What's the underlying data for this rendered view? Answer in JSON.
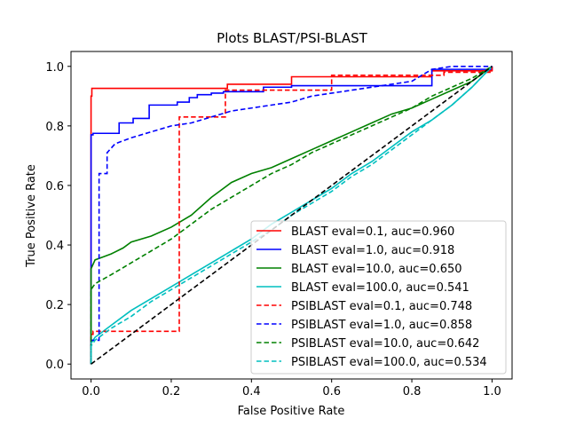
{
  "chart_data": {
    "type": "line",
    "title": "Plots BLAST/PSI-BLAST",
    "xlabel": "False Positive Rate",
    "ylabel": "True Positive Rate",
    "xlim": [
      -0.05,
      1.05
    ],
    "ylim": [
      -0.05,
      1.05
    ],
    "xticks": [
      "0.0",
      "0.2",
      "0.4",
      "0.6",
      "0.8",
      "1.0"
    ],
    "yticks": [
      "0.0",
      "0.2",
      "0.4",
      "0.6",
      "0.8",
      "1.0"
    ],
    "grid": false,
    "legend_position": "lower-right",
    "diagonal": {
      "x": [
        0,
        1
      ],
      "y": [
        0,
        1
      ],
      "color": "#000000",
      "style": "dashed"
    },
    "series": [
      {
        "name": "BLAST eval=0.1, auc=0.960",
        "color": "#ff0000",
        "style": "solid",
        "x": [
          0,
          0,
          0.002,
          0.002,
          0.34,
          0.34,
          0.5,
          0.5,
          0.85,
          0.85,
          1.0,
          1.0
        ],
        "y": [
          0,
          0.9,
          0.9,
          0.926,
          0.926,
          0.94,
          0.94,
          0.965,
          0.965,
          0.985,
          0.985,
          1.0
        ]
      },
      {
        "name": "BLAST eval=1.0, auc=0.918",
        "color": "#0000ff",
        "style": "solid",
        "x": [
          0,
          0,
          0.005,
          0.005,
          0.07,
          0.07,
          0.105,
          0.105,
          0.145,
          0.145,
          0.215,
          0.215,
          0.245,
          0.245,
          0.265,
          0.265,
          0.3,
          0.3,
          0.33,
          0.33,
          0.43,
          0.43,
          0.5,
          0.5,
          0.85,
          0.85,
          1.0,
          1.0
        ],
        "y": [
          0,
          0.77,
          0.77,
          0.775,
          0.775,
          0.81,
          0.81,
          0.825,
          0.825,
          0.87,
          0.87,
          0.88,
          0.88,
          0.895,
          0.895,
          0.905,
          0.905,
          0.91,
          0.91,
          0.915,
          0.915,
          0.93,
          0.93,
          0.935,
          0.935,
          0.99,
          0.99,
          1.0
        ]
      },
      {
        "name": "BLAST eval=10.0, auc=0.650",
        "color": "#008000",
        "style": "solid",
        "x": [
          0,
          0,
          0.01,
          0.03,
          0.05,
          0.08,
          0.1,
          0.15,
          0.2,
          0.25,
          0.3,
          0.35,
          0.4,
          0.45,
          0.5,
          0.55,
          0.6,
          0.65,
          0.7,
          0.75,
          0.8,
          0.85,
          0.9,
          0.95,
          1.0
        ],
        "y": [
          0,
          0.32,
          0.35,
          0.36,
          0.37,
          0.39,
          0.41,
          0.43,
          0.46,
          0.5,
          0.56,
          0.61,
          0.64,
          0.66,
          0.69,
          0.72,
          0.75,
          0.78,
          0.81,
          0.84,
          0.86,
          0.89,
          0.92,
          0.95,
          1.0
        ]
      },
      {
        "name": "BLAST eval=100.0, auc=0.541",
        "color": "#00bfbf",
        "style": "solid",
        "x": [
          0,
          0,
          0.01,
          0.03,
          0.05,
          0.1,
          0.15,
          0.2,
          0.25,
          0.3,
          0.35,
          0.4,
          0.45,
          0.5,
          0.55,
          0.6,
          0.65,
          0.7,
          0.75,
          0.8,
          0.85,
          0.9,
          0.95,
          1.0
        ],
        "y": [
          0,
          0.07,
          0.09,
          0.11,
          0.13,
          0.18,
          0.22,
          0.26,
          0.3,
          0.34,
          0.38,
          0.42,
          0.47,
          0.51,
          0.55,
          0.59,
          0.64,
          0.68,
          0.73,
          0.78,
          0.82,
          0.87,
          0.93,
          1.0
        ]
      },
      {
        "name": "PSIBLAST eval=0.1, auc=0.748",
        "color": "#ff0000",
        "style": "dashed",
        "x": [
          0,
          0,
          0.005,
          0.005,
          0.22,
          0.22,
          0.335,
          0.335,
          0.6,
          0.6,
          0.88,
          0.88,
          1.0,
          1.0
        ],
        "y": [
          0,
          0.1,
          0.1,
          0.11,
          0.11,
          0.83,
          0.83,
          0.92,
          0.92,
          0.97,
          0.97,
          0.98,
          0.98,
          1.0
        ]
      },
      {
        "name": "PSIBLAST eval=1.0, auc=0.858",
        "color": "#0000ff",
        "style": "dashed",
        "x": [
          0,
          0,
          0.02,
          0.02,
          0.04,
          0.04,
          0.06,
          0.08,
          0.1,
          0.15,
          0.2,
          0.25,
          0.3,
          0.35,
          0.4,
          0.45,
          0.5,
          0.55,
          0.6,
          0.7,
          0.8,
          0.85,
          0.9,
          1.0
        ],
        "y": [
          0,
          0.08,
          0.08,
          0.64,
          0.64,
          0.71,
          0.74,
          0.75,
          0.76,
          0.78,
          0.8,
          0.81,
          0.83,
          0.85,
          0.86,
          0.87,
          0.88,
          0.9,
          0.91,
          0.93,
          0.95,
          0.99,
          1.0,
          1.0
        ]
      },
      {
        "name": "PSIBLAST eval=10.0, auc=0.642",
        "color": "#008000",
        "style": "dashed",
        "x": [
          0,
          0,
          0.01,
          0.05,
          0.1,
          0.15,
          0.2,
          0.25,
          0.3,
          0.35,
          0.4,
          0.45,
          0.5,
          0.55,
          0.6,
          0.65,
          0.7,
          0.75,
          0.8,
          0.85,
          0.9,
          0.95,
          1.0
        ],
        "y": [
          0,
          0.25,
          0.27,
          0.3,
          0.34,
          0.38,
          0.42,
          0.47,
          0.52,
          0.56,
          0.6,
          0.64,
          0.67,
          0.71,
          0.74,
          0.77,
          0.8,
          0.83,
          0.86,
          0.9,
          0.93,
          0.96,
          1.0
        ]
      },
      {
        "name": "PSIBLAST eval=100.0, auc=0.534",
        "color": "#00bfbf",
        "style": "dashed",
        "x": [
          0,
          0,
          0.01,
          0.05,
          0.1,
          0.15,
          0.2,
          0.25,
          0.3,
          0.35,
          0.4,
          0.45,
          0.5,
          0.55,
          0.6,
          0.65,
          0.7,
          0.75,
          0.8,
          0.85,
          0.9,
          0.95,
          1.0
        ],
        "y": [
          0,
          0.06,
          0.08,
          0.12,
          0.16,
          0.21,
          0.25,
          0.29,
          0.33,
          0.37,
          0.41,
          0.45,
          0.5,
          0.54,
          0.58,
          0.63,
          0.67,
          0.72,
          0.77,
          0.82,
          0.87,
          0.93,
          1.0
        ]
      }
    ]
  }
}
